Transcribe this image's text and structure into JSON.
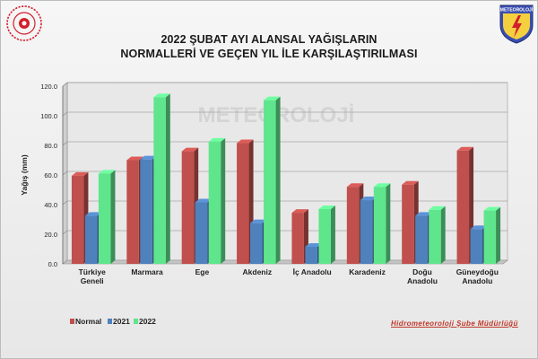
{
  "header": {
    "title_line1": "2022 ŞUBAT AYI ALANSAL YAĞIŞLARIN",
    "title_line2": "NORMALLERİ VE GEÇEN YIL İLE KARŞILAŞTIRILMASI",
    "left_logo": "ministry-emblem",
    "right_logo": "meteoroloji-shield",
    "right_logo_text": "METEOROLOJİ"
  },
  "footer": {
    "credit": "Hidrometeoroloji Şube Müdürlüğü"
  },
  "watermark": "METEOROLOJİ",
  "colors": {
    "normal": "#c0504d",
    "y2021": "#4f81bd",
    "y2022": "#5fe58c",
    "wall": "#e8e8e8",
    "grid": "#8a8a8a"
  },
  "chart_data": {
    "type": "bar",
    "title": "2022 ŞUBAT AYI ALANSAL YAĞIŞLARIN NORMALLERİ VE GEÇEN YIL İLE KARŞILAŞTIRILMASI",
    "ylabel": "Yağış (mm)",
    "xlabel": "",
    "ylim": [
      0,
      120
    ],
    "yticks": [
      "0.0",
      "20.0",
      "40.0",
      "60.0",
      "80.0",
      "100.0",
      "120.0"
    ],
    "grid": true,
    "legend_position": "bottom-left",
    "categories": [
      [
        "Türkiye",
        "Geneli"
      ],
      [
        "Marmara"
      ],
      [
        "Ege"
      ],
      [
        "Akdeniz"
      ],
      [
        "İç Anadolu"
      ],
      [
        "Karadeniz"
      ],
      [
        "Doğu",
        "Anadolu"
      ],
      [
        "Güneydoğu",
        "Anadolu"
      ]
    ],
    "series": [
      {
        "name": "Normal",
        "key": "normal",
        "values": [
          59.5,
          70,
          76,
          81.5,
          34.5,
          52,
          53.5,
          76.5
        ]
      },
      {
        "name": "2021",
        "key": "y2021",
        "values": [
          32.5,
          70.5,
          41.5,
          27.5,
          11.5,
          43,
          32.5,
          23.5
        ]
      },
      {
        "name": "2022",
        "key": "y2022",
        "values": [
          61,
          112.5,
          82.5,
          110.5,
          37,
          52,
          36.5,
          36
        ]
      }
    ]
  }
}
